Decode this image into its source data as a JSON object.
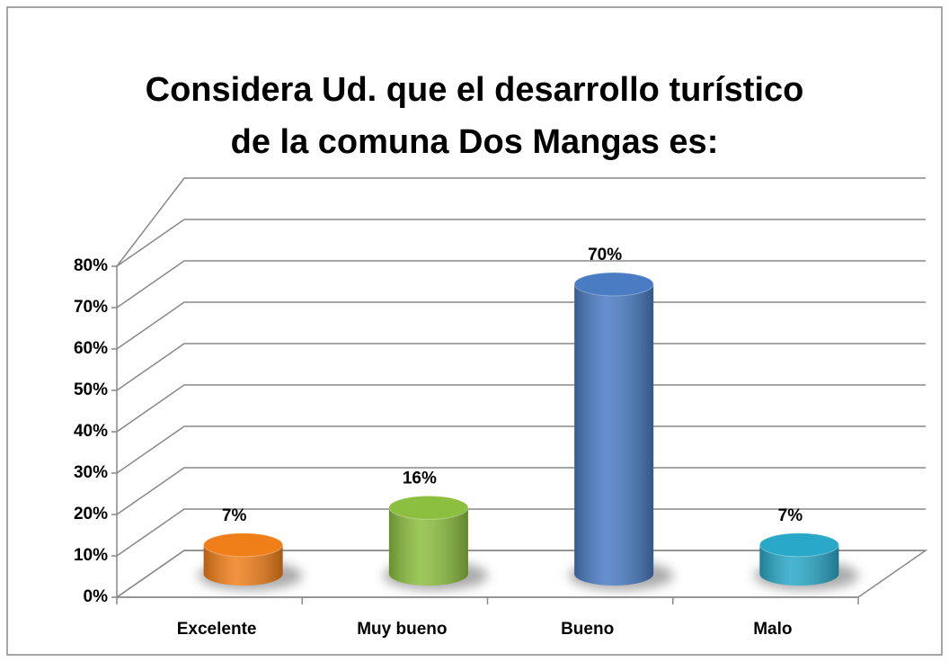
{
  "chart_data": {
    "type": "bar3d",
    "title": [
      "Considera Ud. que el desarrollo turístico",
      "de la comuna Dos Mangas es:"
    ],
    "categories": [
      "Excelente",
      "Muy bueno",
      "Bueno",
      "Malo"
    ],
    "values": [
      7,
      16,
      70,
      7
    ],
    "value_labels": [
      "7%",
      "16%",
      "70%",
      "7%"
    ],
    "colors": [
      "#f07f1a",
      "#8cbf3f",
      "#4a7cc4",
      "#2aa8c8"
    ],
    "ylim": [
      0,
      80
    ],
    "yticks": [
      {
        "value": 0,
        "label": "0%"
      },
      {
        "value": 10,
        "label": "10%"
      },
      {
        "value": 20,
        "label": "20%"
      },
      {
        "value": 30,
        "label": "30%"
      },
      {
        "value": 40,
        "label": "40%"
      },
      {
        "value": 50,
        "label": "50%"
      },
      {
        "value": 60,
        "label": "60%"
      },
      {
        "value": 70,
        "label": "70%"
      },
      {
        "value": 80,
        "label": "80%"
      }
    ],
    "grid": true
  }
}
